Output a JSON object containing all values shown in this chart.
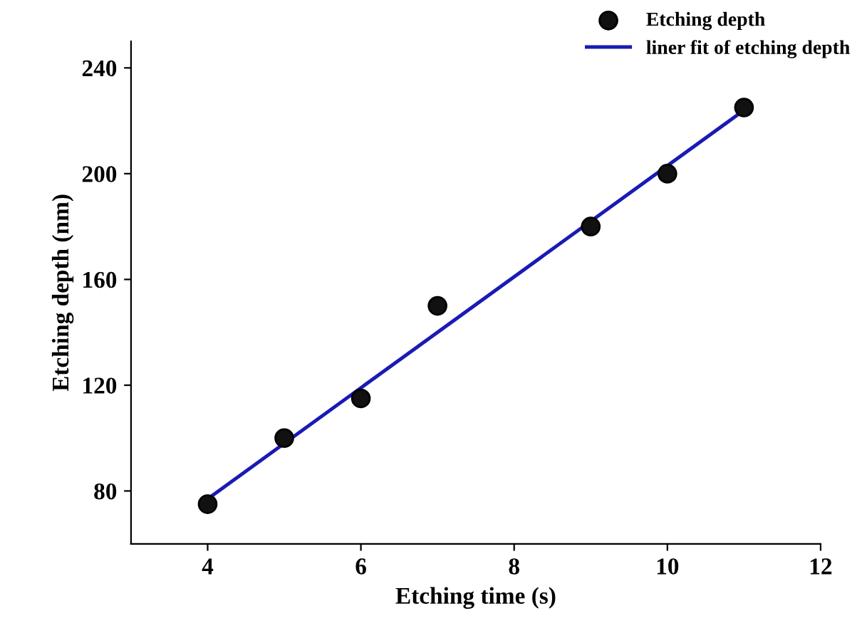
{
  "chart_data": {
    "type": "scatter",
    "xlabel": "Etching time (s)",
    "ylabel": "Etching depth (nm)",
    "xlim": [
      3,
      12
    ],
    "xticks": [
      4,
      6,
      8,
      10,
      12
    ],
    "ylim": [
      60,
      250
    ],
    "yticks": [
      80,
      120,
      160,
      200,
      240
    ],
    "grid": false,
    "legend": "top right",
    "series": [
      {
        "name": "Etching depth",
        "marker": "circle",
        "color": "#111111",
        "x": [
          4,
          5,
          6,
          7,
          9,
          10,
          11
        ],
        "values": [
          75,
          100,
          115,
          150,
          180,
          200,
          225
        ]
      },
      {
        "name": "liner fit of etching depth",
        "type": "line",
        "marker": "none",
        "color": "#1a1ab4",
        "line_style": "solid",
        "x": [
          4,
          11
        ],
        "values": [
          77,
          224
        ]
      }
    ]
  }
}
